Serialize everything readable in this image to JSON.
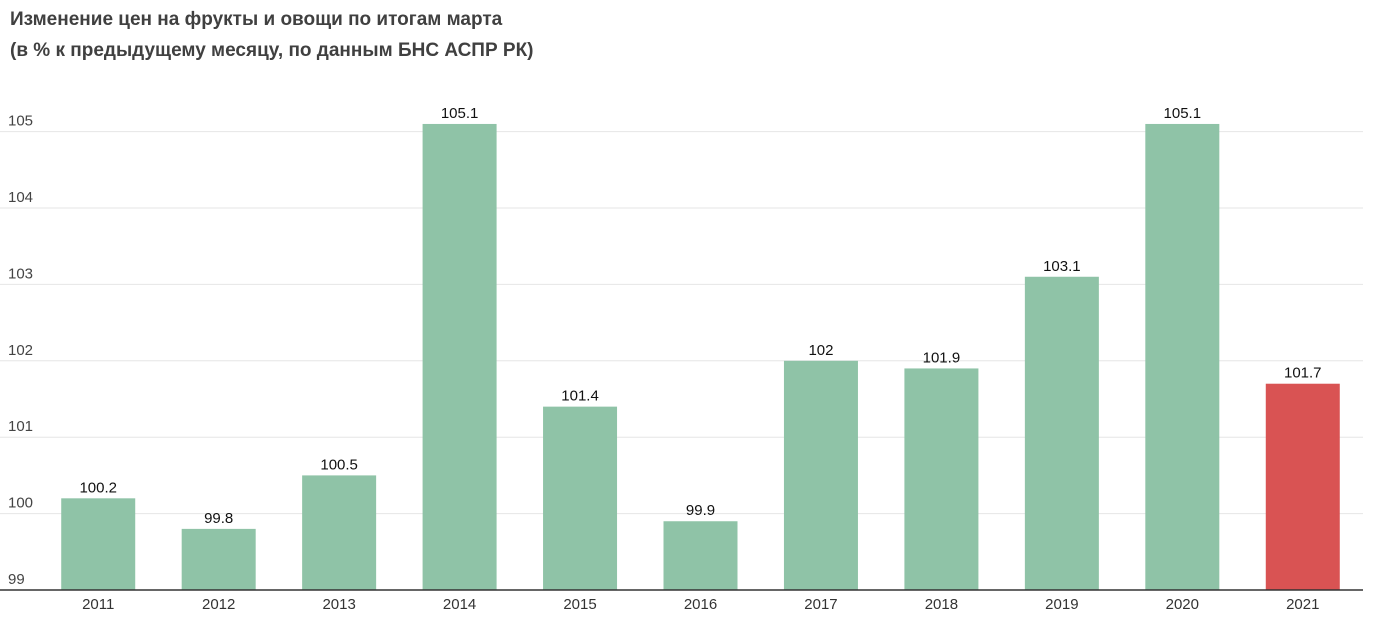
{
  "title_line1": "Изменение цен на фрукты и овощи по итогам марта",
  "title_line2": "(в % к предыдущему месяцу, по данным БНС АСПР РК)",
  "chart_data": {
    "type": "bar",
    "title": "Изменение цен на фрукты и овощи по итогам марта (в % к предыдущему месяцу, по данным БНС АСПР РК)",
    "xlabel": "",
    "ylabel": "",
    "ylim": [
      99,
      105.8
    ],
    "yticks": [
      99,
      100,
      101,
      102,
      103,
      104,
      105
    ],
    "grid": true,
    "categories": [
      "2011",
      "2012",
      "2013",
      "2014",
      "2015",
      "2016",
      "2017",
      "2018",
      "2019",
      "2020",
      "2021"
    ],
    "values": [
      100.2,
      99.8,
      100.5,
      105.1,
      101.4,
      99.9,
      102,
      101.9,
      103.1,
      105.1,
      101.7
    ],
    "value_labels": [
      "100.2",
      "99.8",
      "100.5",
      "105.1",
      "101.4",
      "99.9",
      "102",
      "101.9",
      "103.1",
      "105.1",
      "101.7"
    ],
    "colors": {
      "default": "#8fc3a7",
      "highlight": "#d95353",
      "highlight_category": "2021",
      "grid": "#e6e6e6",
      "axis": "#333333"
    }
  }
}
